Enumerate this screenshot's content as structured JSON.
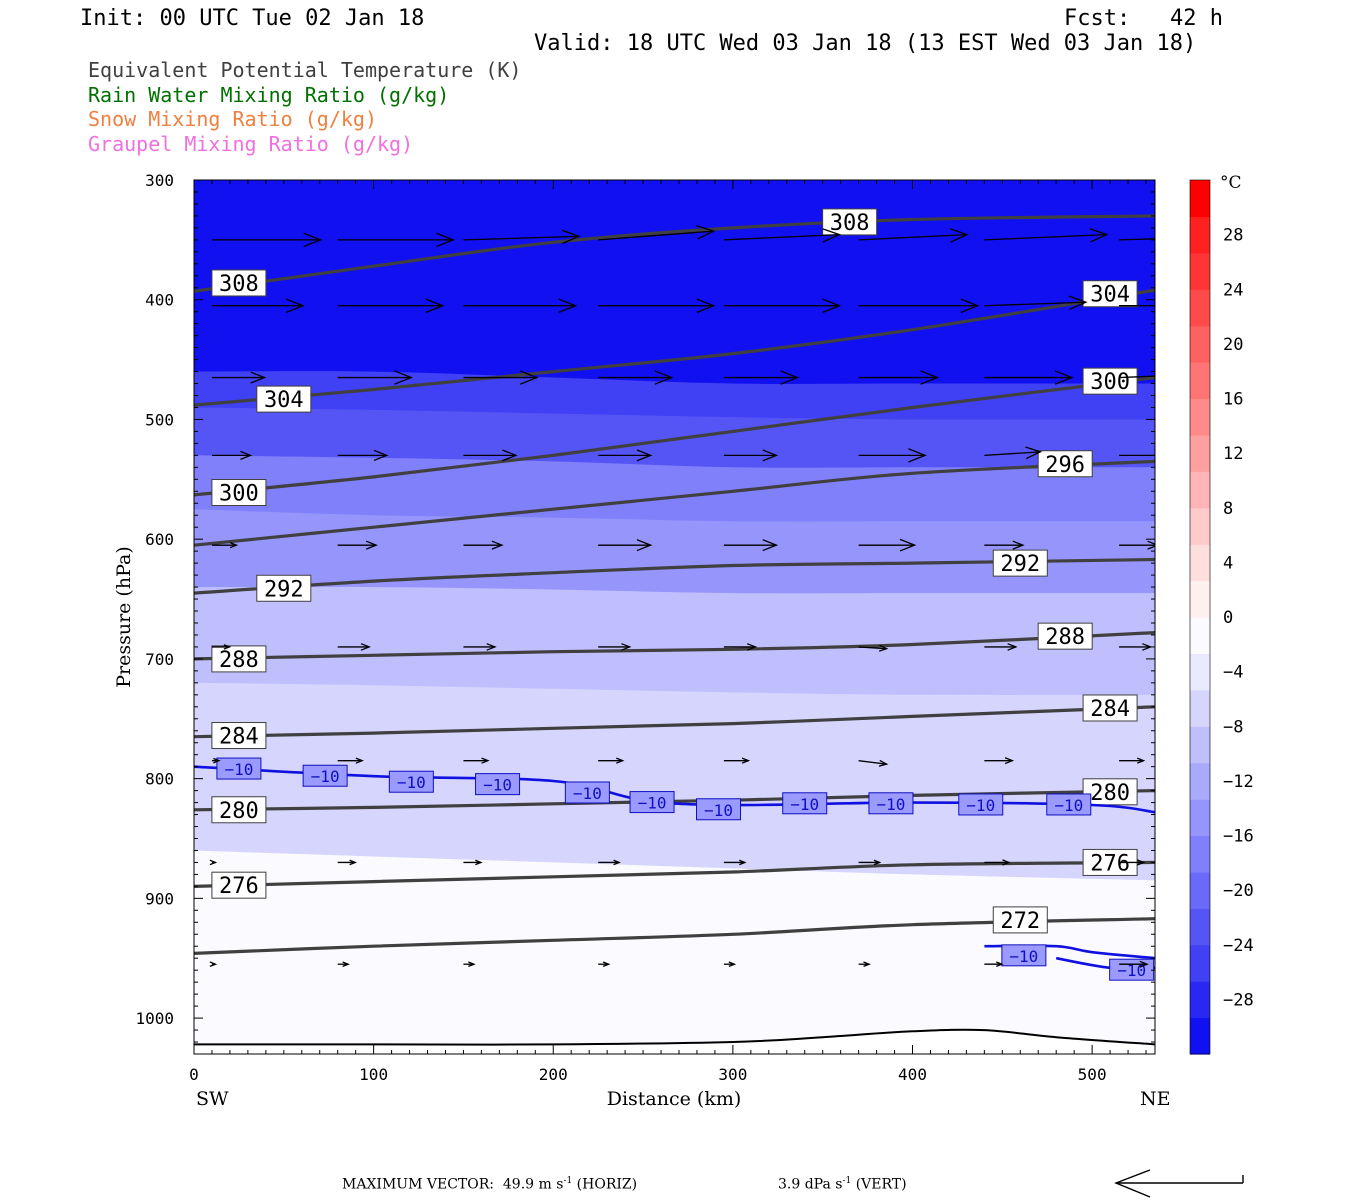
{
  "header": {
    "init": "Init: 00 UTC Tue 02 Jan 18",
    "fcst": "Fcst:   42 h",
    "valid": "Valid: 18 UTC Wed 03 Jan 18 (13 EST Wed 03 Jan 18)"
  },
  "legend": [
    {
      "text": "Equivalent Potential Temperature (K)",
      "color": "#404040"
    },
    {
      "text": "Rain Water Mixing Ratio (g/kg)",
      "color": "#007000"
    },
    {
      "text": "Snow Mixing Ratio (g/kg)",
      "color": "#f08040"
    },
    {
      "text": "Graupel Mixing Ratio (g/kg)",
      "color": "#f070e0"
    }
  ],
  "footer": {
    "label": "MAXIMUM VECTOR:",
    "horiz_value": "49.9",
    "horiz_unit_base": "m s",
    "horiz_exp": "-1",
    "horiz_tag": "(HORIZ)",
    "vert_value": "3.9",
    "vert_unit_base": "dPa s",
    "vert_exp": "-1",
    "vert_tag": "(VERT)"
  },
  "chart_data": {
    "type": "contour",
    "xlabel": "Distance (km)",
    "ylabel": "Pressure (hPa)",
    "xlim": [
      0,
      535
    ],
    "ylim": [
      300,
      1030
    ],
    "x_ticks": [
      0,
      100,
      200,
      300,
      400,
      500
    ],
    "y_ticks": [
      300,
      400,
      500,
      600,
      700,
      800,
      900,
      1000
    ],
    "x_end_labels": {
      "left": "SW",
      "right": "NE"
    },
    "colorbar": {
      "unit": "°C",
      "labels": [
        "28",
        "24",
        "20",
        "16",
        "12",
        "8",
        "4",
        "0",
        "−4",
        "−8",
        "−12",
        "−16",
        "−20",
        "−24",
        "−28"
      ],
      "label_values": [
        28,
        24,
        20,
        16,
        12,
        8,
        4,
        0,
        -4,
        -8,
        -12,
        -16,
        -20,
        -24,
        -28
      ],
      "range": [
        -32,
        32
      ],
      "colors": [
        "#1010f0",
        "#2828f2",
        "#4040f4",
        "#5555f6",
        "#6a6af8",
        "#8080fa",
        "#9595fb",
        "#aaaafc",
        "#bfbffd",
        "#d5d5fe",
        "#eaeaff",
        "#fafaff",
        "#fff0f0",
        "#ffdede",
        "#ffcaca",
        "#ffb5b5",
        "#ffa0a0",
        "#ff8a8a",
        "#ff7575",
        "#ff6060",
        "#ff4a4a",
        "#ff3535",
        "#ff2020",
        "#ff0000"
      ]
    },
    "temperature_fill": {
      "levels": [
        {
          "min": null,
          "max": -28,
          "p": [
            460,
            460,
            465,
            470,
            470,
            470
          ]
        },
        {
          "min": -28,
          "max": -24,
          "p": [
            490,
            492,
            495,
            498,
            500,
            500
          ]
        },
        {
          "min": -24,
          "max": -20,
          "p": [
            530,
            532,
            535,
            540,
            540,
            540
          ]
        },
        {
          "min": -20,
          "max": -16,
          "p": [
            575,
            580,
            582,
            585,
            585,
            585
          ]
        },
        {
          "min": -16,
          "max": -12,
          "p": [
            640,
            640,
            642,
            645,
            645,
            645
          ]
        },
        {
          "min": -12,
          "max": -8,
          "p": [
            720,
            722,
            725,
            728,
            730,
            730
          ]
        },
        {
          "min": -8,
          "max": -4,
          "p": [
            860,
            865,
            870,
            875,
            880,
            885
          ]
        }
      ],
      "x": [
        0,
        100,
        200,
        300,
        400,
        535
      ]
    },
    "theta_e_contours": [
      {
        "level": 308,
        "label": "308",
        "x": [
          0,
          100,
          200,
          300,
          400,
          535
        ],
        "p": [
          393,
          372,
          352,
          340,
          333,
          330
        ],
        "label_at": [
          [
            25,
            386
          ],
          [
            365,
            335
          ]
        ]
      },
      {
        "level": 304,
        "label": "304",
        "x": [
          0,
          100,
          200,
          300,
          400,
          535
        ],
        "p": [
          488,
          475,
          460,
          445,
          425,
          392
        ],
        "label_at": [
          [
            50,
            483
          ],
          [
            510,
            395
          ]
        ]
      },
      {
        "level": 300,
        "label": "300",
        "x": [
          0,
          100,
          200,
          300,
          400,
          535
        ],
        "p": [
          563,
          548,
          530,
          510,
          490,
          465
        ],
        "label_at": [
          [
            25,
            561
          ],
          [
            510,
            468
          ]
        ]
      },
      {
        "level": 296,
        "label": "296",
        "x": [
          0,
          100,
          200,
          300,
          400,
          535
        ],
        "p": [
          605,
          590,
          575,
          560,
          545,
          535
        ],
        "label_at": [
          [
            485,
            537
          ]
        ]
      },
      {
        "level": 292,
        "label": "292",
        "x": [
          0,
          100,
          200,
          300,
          400,
          535
        ],
        "p": [
          645,
          635,
          628,
          622,
          620,
          617
        ],
        "label_at": [
          [
            50,
            641
          ],
          [
            460,
            620
          ]
        ]
      },
      {
        "level": 288,
        "label": "288",
        "x": [
          0,
          100,
          200,
          300,
          400,
          535
        ],
        "p": [
          700,
          697,
          694,
          692,
          688,
          678
        ],
        "label_at": [
          [
            25,
            700
          ],
          [
            485,
            681
          ]
        ]
      },
      {
        "level": 284,
        "label": "284",
        "x": [
          0,
          100,
          200,
          300,
          400,
          535
        ],
        "p": [
          765,
          762,
          758,
          754,
          748,
          740
        ],
        "label_at": [
          [
            25,
            764
          ],
          [
            510,
            741
          ]
        ]
      },
      {
        "level": 280,
        "label": "280",
        "x": [
          0,
          100,
          200,
          300,
          400,
          535
        ],
        "p": [
          826,
          824,
          821,
          818,
          814,
          810
        ],
        "label_at": [
          [
            25,
            826
          ],
          [
            510,
            811
          ]
        ]
      },
      {
        "level": 276,
        "label": "276",
        "x": [
          0,
          100,
          200,
          300,
          400,
          535
        ],
        "p": [
          890,
          886,
          882,
          878,
          872,
          870
        ],
        "label_at": [
          [
            25,
            889
          ],
          [
            510,
            870
          ]
        ]
      },
      {
        "level": 272,
        "label": "272",
        "x": [
          0,
          100,
          200,
          300,
          400,
          535
        ],
        "p": [
          946,
          940,
          935,
          930,
          922,
          917
        ],
        "label_at": [
          [
            460,
            918
          ]
        ]
      }
    ],
    "temperature_contours": [
      {
        "level": -10,
        "label": "−10",
        "x": [
          0,
          100,
          200,
          250,
          300,
          400,
          500,
          535
        ],
        "p": [
          790,
          798,
          802,
          818,
          822,
          820,
          822,
          828
        ],
        "label_at": [
          [
            25,
            792
          ],
          [
            73,
            798
          ],
          [
            121,
            803
          ],
          [
            169,
            805
          ],
          [
            219,
            812
          ],
          [
            255,
            820
          ],
          [
            292,
            826
          ],
          [
            340,
            821
          ],
          [
            388,
            821
          ],
          [
            438,
            822
          ],
          [
            487,
            822
          ]
        ]
      },
      {
        "level": -10,
        "label": "−10",
        "x": [
          440,
          480,
          500,
          535
        ],
        "p": [
          940,
          940,
          945,
          950
        ],
        "label_at": [
          [
            462,
            948
          ]
        ]
      },
      {
        "level": -10,
        "label": "−10",
        "x": [
          480,
          510,
          535
        ],
        "p": [
          950,
          958,
          958
        ],
        "label_at": [
          [
            522,
            960
          ]
        ]
      }
    ],
    "wind_vectors": {
      "x": [
        10,
        80,
        150,
        225,
        295,
        370,
        440,
        515
      ],
      "rows": [
        {
          "p": 350,
          "u": [
            62,
            66,
            66,
            66,
            66,
            62,
            70,
            70
          ],
          "w": [
            0,
            0,
            -2,
            -5,
            -3,
            -3,
            -3,
            -2
          ]
        },
        {
          "p": 405,
          "u": [
            52,
            60,
            64,
            66,
            66,
            68,
            58,
            54
          ],
          "w": [
            0,
            0,
            0,
            0,
            0,
            0,
            -2,
            0
          ]
        },
        {
          "p": 465,
          "u": [
            30,
            42,
            42,
            42,
            42,
            45,
            50,
            50
          ],
          "w": [
            0,
            0,
            0,
            0,
            0,
            0,
            0,
            -2
          ]
        },
        {
          "p": 530,
          "u": [
            22,
            28,
            30,
            30,
            30,
            38,
            32,
            42
          ],
          "w": [
            0,
            0,
            0,
            0,
            0,
            0,
            -2,
            0
          ]
        },
        {
          "p": 605,
          "u": [
            14,
            22,
            22,
            30,
            30,
            32,
            22,
            22
          ],
          "w": [
            0,
            0,
            0,
            0,
            0,
            0,
            0,
            0
          ]
        },
        {
          "p": 690,
          "u": [
            10,
            18,
            18,
            18,
            18,
            16,
            18,
            18
          ],
          "w": [
            0,
            0,
            0,
            0,
            0,
            1,
            0,
            0
          ]
        },
        {
          "p": 785,
          "u": [
            4,
            14,
            14,
            14,
            14,
            16,
            16,
            14
          ],
          "w": [
            0,
            0,
            0,
            0,
            0,
            2,
            0,
            0
          ]
        },
        {
          "p": 870,
          "u": [
            2,
            10,
            10,
            12,
            12,
            12,
            14,
            14
          ],
          "w": [
            0,
            0,
            0,
            0,
            0,
            0,
            0,
            0
          ]
        },
        {
          "p": 955,
          "u": [
            2,
            6,
            6,
            6,
            6,
            6,
            10,
            16
          ],
          "w": [
            0,
            0,
            0,
            0,
            0,
            0,
            0,
            0
          ]
        }
      ]
    },
    "terrain": {
      "x": [
        0,
        100,
        200,
        300,
        350,
        400,
        440,
        480,
        535
      ],
      "p": [
        1022,
        1022,
        1022,
        1020,
        1016,
        1011,
        1010,
        1016,
        1022
      ]
    },
    "reference_arrow_direction": "west"
  }
}
